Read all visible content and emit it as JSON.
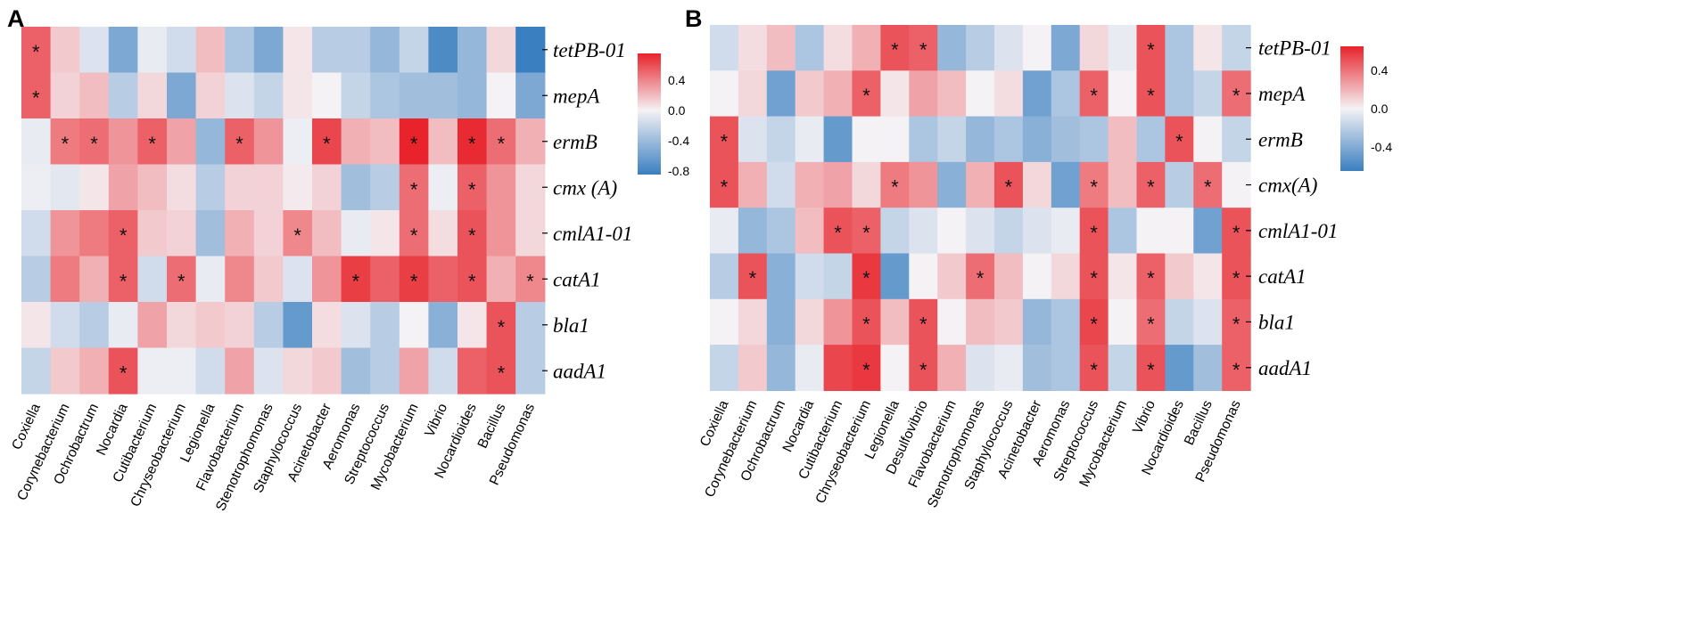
{
  "chart_data": [
    {
      "type": "heatmap",
      "panel": "A",
      "columns": [
        "Coxiella",
        "Corynebacterium",
        "Ochrobactrum",
        "Nocardia",
        "Cutibacterium",
        "Chryseobacterium",
        "Legionella",
        "Flavobacterium",
        "Stenotrophomonas",
        "Staphylococcus",
        "Acinetobacter",
        "Aeromonas",
        "Streptococcus",
        "Mycobacterium",
        "Vibrio",
        "Nocardioides",
        "Bacillus",
        "Pseudomonas"
      ],
      "rows": [
        "tetPB-01",
        "mepA",
        "ermB",
        "cmx (A)",
        "cmlA1-01",
        "catA1",
        "bla1",
        "aadA1"
      ],
      "values": [
        [
          0.55,
          0.15,
          -0.1,
          -0.5,
          -0.05,
          -0.15,
          0.2,
          -0.3,
          -0.5,
          0.05,
          -0.25,
          -0.25,
          -0.4,
          -0.2,
          -0.7,
          -0.4,
          0.1,
          -0.8
        ],
        [
          0.55,
          0.12,
          0.2,
          -0.25,
          0.1,
          -0.5,
          0.12,
          -0.1,
          -0.2,
          0.05,
          0.0,
          -0.2,
          -0.3,
          -0.35,
          -0.35,
          -0.4,
          0.0,
          -0.5
        ],
        [
          -0.05,
          0.45,
          0.5,
          0.35,
          0.55,
          0.3,
          -0.4,
          0.55,
          0.35,
          -0.03,
          0.65,
          0.25,
          0.2,
          0.78,
          0.2,
          0.75,
          0.5,
          0.25
        ],
        [
          -0.03,
          -0.07,
          0.05,
          0.3,
          0.2,
          0.08,
          -0.25,
          0.12,
          0.12,
          0.03,
          0.12,
          -0.35,
          -0.25,
          0.5,
          -0.03,
          0.55,
          0.35,
          0.1
        ],
        [
          -0.15,
          0.35,
          0.45,
          0.55,
          0.15,
          0.12,
          -0.35,
          0.25,
          0.12,
          0.4,
          0.2,
          -0.05,
          0.05,
          0.5,
          0.08,
          0.6,
          0.35,
          0.1
        ],
        [
          -0.25,
          0.45,
          0.25,
          0.55,
          -0.15,
          0.5,
          -0.05,
          0.4,
          0.15,
          -0.1,
          0.35,
          0.68,
          0.55,
          0.68,
          0.55,
          0.6,
          0.25,
          0.4
        ],
        [
          0.05,
          -0.15,
          -0.25,
          -0.05,
          0.3,
          0.1,
          0.15,
          0.12,
          -0.25,
          -0.6,
          0.08,
          -0.1,
          -0.25,
          0.0,
          -0.45,
          0.05,
          0.6,
          -0.25
        ],
        [
          -0.2,
          0.15,
          0.25,
          0.6,
          -0.03,
          -0.03,
          -0.15,
          0.3,
          -0.1,
          0.1,
          0.15,
          -0.35,
          -0.25,
          0.3,
          -0.15,
          0.55,
          0.6,
          -0.25
        ]
      ],
      "significant": [
        [
          0
        ],
        [
          0
        ],
        [
          1,
          2,
          4,
          7,
          10,
          13,
          15,
          16
        ],
        [
          13,
          15
        ],
        [
          3,
          9,
          13,
          15
        ],
        [
          3,
          5,
          11,
          13,
          15,
          17
        ],
        [
          16
        ],
        [
          3,
          16
        ]
      ],
      "colorbar": {
        "ticks": [
          "0.4",
          "0.0",
          "-0.4",
          "-0.8"
        ],
        "min": -0.85,
        "max": 0.75
      },
      "colors": {
        "neg": "#3a7fc0",
        "mid": "#f4f2f5",
        "pos": "#e8232b"
      }
    },
    {
      "type": "heatmap",
      "panel": "B",
      "columns": [
        "Coxiella",
        "Corynebacterium",
        "Ochrobactrum",
        "Nocardia",
        "Cutibacterium",
        "Chryseobacterium",
        "Legionella",
        "Desulfovibrio",
        "Flavobacterium",
        "Stenotrophomonas",
        "Staphylococcus",
        "Acinetobacter",
        "Aeromonas",
        "Streptococcus",
        "Mycobacterium",
        "Vibrio",
        "Nocardioides",
        "Bacillus",
        "Pseudomonas"
      ],
      "rows": [
        "tetPB-01",
        "mepA",
        "ermB",
        "cmx(A)",
        "cmlA1-01",
        "catA1",
        "bla1",
        "aadA1"
      ],
      "values": [
        [
          -0.15,
          0.08,
          0.2,
          -0.3,
          0.08,
          0.25,
          0.6,
          0.55,
          -0.4,
          -0.25,
          -0.1,
          0.0,
          -0.5,
          0.1,
          -0.05,
          0.6,
          -0.3,
          0.05,
          -0.2
        ],
        [
          0.0,
          0.1,
          -0.55,
          0.15,
          0.25,
          0.55,
          0.05,
          0.3,
          0.2,
          0.0,
          0.08,
          -0.55,
          -0.3,
          0.55,
          0.0,
          0.6,
          -0.3,
          -0.2,
          0.5
        ],
        [
          0.6,
          -0.1,
          -0.2,
          -0.05,
          -0.6,
          0.0,
          0.0,
          -0.3,
          -0.2,
          -0.4,
          -0.3,
          -0.45,
          -0.35,
          -0.3,
          0.2,
          -0.3,
          0.6,
          0.0,
          -0.2
        ],
        [
          0.6,
          0.25,
          -0.15,
          0.25,
          0.3,
          0.1,
          0.45,
          0.35,
          -0.45,
          0.25,
          0.6,
          0.1,
          -0.55,
          0.45,
          0.2,
          0.55,
          -0.25,
          0.5,
          0.0
        ],
        [
          -0.05,
          -0.4,
          -0.3,
          0.2,
          0.6,
          0.55,
          -0.2,
          -0.1,
          0.0,
          -0.1,
          -0.2,
          -0.1,
          -0.05,
          0.6,
          -0.3,
          0.0,
          0.0,
          -0.55,
          0.6
        ],
        [
          -0.25,
          0.6,
          -0.45,
          -0.15,
          -0.2,
          0.7,
          -0.6,
          0.0,
          0.15,
          0.5,
          0.2,
          0.0,
          0.1,
          0.6,
          0.05,
          0.55,
          0.15,
          0.05,
          0.6
        ],
        [
          0.0,
          0.1,
          -0.45,
          0.1,
          0.35,
          0.6,
          0.2,
          0.6,
          0.0,
          0.2,
          0.15,
          -0.4,
          -0.3,
          0.65,
          0.0,
          0.5,
          -0.2,
          -0.1,
          0.55
        ],
        [
          -0.2,
          0.15,
          -0.4,
          -0.05,
          0.65,
          0.7,
          0.0,
          0.6,
          0.25,
          -0.1,
          -0.05,
          -0.35,
          -0.3,
          0.6,
          -0.2,
          0.6,
          -0.6,
          -0.35,
          0.55
        ]
      ],
      "significant": [
        [
          6,
          7,
          15
        ],
        [
          5,
          13,
          15,
          18
        ],
        [
          0,
          16
        ],
        [
          0,
          6,
          10,
          13,
          15,
          17
        ],
        [
          4,
          5,
          13,
          18
        ],
        [
          1,
          5,
          9,
          13,
          15,
          18
        ],
        [
          5,
          7,
          13,
          15,
          18
        ],
        [
          5,
          7,
          13,
          15,
          18
        ]
      ],
      "colorbar": {
        "ticks": [
          "0.4",
          "0.0",
          "-0.4"
        ],
        "min": -0.65,
        "max": 0.65
      },
      "colors": {
        "neg": "#3a7fc0",
        "mid": "#f4f2f5",
        "pos": "#e8232b"
      }
    }
  ]
}
